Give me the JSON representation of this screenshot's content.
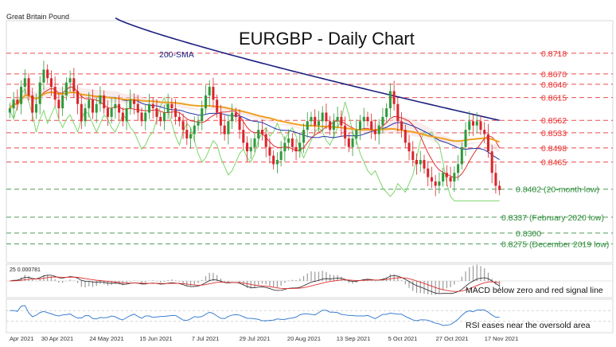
{
  "chart_data": {
    "type": "candlestick",
    "title": "EURGBP - Daily Chart",
    "instrument_label": "Great Britain Pound",
    "sma_label": "200-SMA",
    "price_range": [
      0.8235,
      0.879
    ],
    "resistance_levels": [
      {
        "value": 0.8718,
        "label": "0.8718",
        "color": "#e8302f"
      },
      {
        "value": 0.867,
        "label": "0.8670",
        "color": "#e8302f"
      },
      {
        "value": 0.8646,
        "label": "0.8646",
        "color": "#e8302f"
      },
      {
        "value": 0.8615,
        "label": "0.8615",
        "color": "#e8302f"
      },
      {
        "value": 0.8562,
        "label": "0.8562",
        "color": "#e8302f"
      },
      {
        "value": 0.8533,
        "label": "0.8533",
        "color": "#e8302f"
      },
      {
        "value": 0.8498,
        "label": "0.8498",
        "color": "#e8302f"
      },
      {
        "value": 0.8465,
        "label": "0.8465",
        "color": "#e8302f"
      }
    ],
    "support_levels": [
      {
        "value": 0.8402,
        "label": "0.8402 (20-month low)",
        "color": "#2e8b3a"
      },
      {
        "value": 0.8337,
        "label": "0.8337 (February 2020 low)",
        "color": "#2e8b3a"
      },
      {
        "value": 0.83,
        "label": "0.8300",
        "color": "#2e8b3a"
      },
      {
        "value": 0.8275,
        "label": "0.8275 (December 2019 low)",
        "color": "#2e8b3a"
      }
    ],
    "x_ticks": [
      "Apr 2021",
      "30 Apr 2021",
      "24 May 2021",
      "15 Jun 2021",
      "7 Jul 2021",
      "29 Jul 2021",
      "20 Aug 2021",
      "13 Sep 2021",
      "5 Oct 2021",
      "27 Oct 2021",
      "17 Nov 2021"
    ],
    "closes": [
      0.859,
      0.861,
      0.86,
      0.864,
      0.866,
      0.862,
      0.858,
      0.86,
      0.865,
      0.868,
      0.866,
      0.864,
      0.861,
      0.859,
      0.862,
      0.865,
      0.866,
      0.863,
      0.86,
      0.856,
      0.859,
      0.861,
      0.858,
      0.86,
      0.862,
      0.859,
      0.857,
      0.859,
      0.86,
      0.858,
      0.856,
      0.859,
      0.861,
      0.86,
      0.858,
      0.856,
      0.858,
      0.86,
      0.859,
      0.857,
      0.856,
      0.858,
      0.86,
      0.859,
      0.857,
      0.856,
      0.854,
      0.852,
      0.853,
      0.855,
      0.856,
      0.859,
      0.862,
      0.864,
      0.861,
      0.858,
      0.855,
      0.853,
      0.856,
      0.858,
      0.857,
      0.854,
      0.851,
      0.849,
      0.85,
      0.852,
      0.854,
      0.853,
      0.85,
      0.848,
      0.846,
      0.847,
      0.849,
      0.851,
      0.852,
      0.85,
      0.849,
      0.851,
      0.854,
      0.856,
      0.857,
      0.855,
      0.856,
      0.858,
      0.856,
      0.854,
      0.856,
      0.857,
      0.855,
      0.852,
      0.85,
      0.852,
      0.854,
      0.856,
      0.857,
      0.856,
      0.854,
      0.853,
      0.855,
      0.857,
      0.859,
      0.863,
      0.86,
      0.856,
      0.854,
      0.851,
      0.849,
      0.847,
      0.846,
      0.847,
      0.845,
      0.843,
      0.842,
      0.841,
      0.842,
      0.844,
      0.843,
      0.842,
      0.844,
      0.846,
      0.85,
      0.854,
      0.856,
      0.855,
      0.856,
      0.854,
      0.853,
      0.849,
      0.844,
      0.841,
      0.84
    ],
    "panels": [
      {
        "header": "25 0.000781",
        "label": "MACD below zero and red signal line"
      },
      {
        "label": "RSI eases near the oversold area"
      }
    ]
  }
}
